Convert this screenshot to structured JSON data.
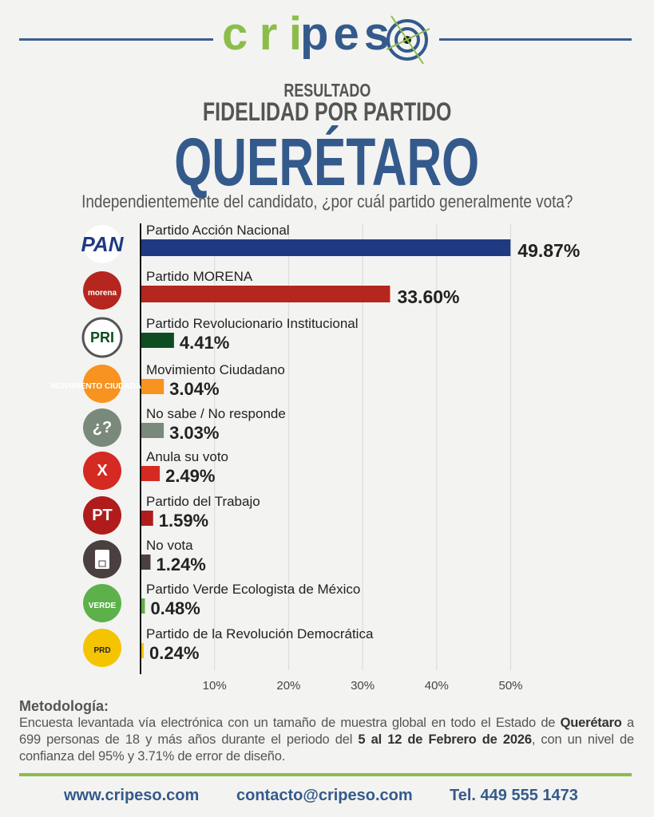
{
  "brand": {
    "name": "cripeso",
    "colors": {
      "green": "#8cbd4a",
      "blue": "#345a8c"
    }
  },
  "header": {
    "kicker": "RESULTADO",
    "title": "FIDELIDAD POR PARTIDO",
    "state": "QUERÉTARO",
    "question": "Independientemente del candidato, ¿por cuál partido generalmente vota?"
  },
  "chart_data": {
    "type": "bar",
    "orientation": "horizontal",
    "xlim": [
      0,
      50
    ],
    "grid": true,
    "xticks": [
      "10%",
      "20%",
      "30%",
      "40%",
      "50%"
    ],
    "categories": [
      "Partido Acción Nacional",
      "Partido MORENA",
      "Partido Revolucionario Institucional",
      "Movimiento Ciudadano",
      "No sabe / No responde",
      "Anula su voto",
      "Partido del Trabajo",
      "No vota",
      "Partido Verde Ecologista de México",
      "Partido de la Revolución Democrática"
    ],
    "values": [
      49.87,
      33.6,
      4.41,
      3.04,
      3.03,
      2.49,
      1.59,
      1.24,
      0.48,
      0.24
    ],
    "labels": [
      "49.87%",
      "33.60%",
      "4.41%",
      "3.04%",
      "3.03%",
      "2.49%",
      "1.59%",
      "1.24%",
      "0.48%",
      "0.24%"
    ],
    "colors": [
      "#1f3a80",
      "#b5261e",
      "#0d4d1f",
      "#f7931e",
      "#7a8a7a",
      "#d42a22",
      "#b01c1c",
      "#4a4040",
      "#5db14a",
      "#f5c400"
    ],
    "icons": [
      {
        "name": "pan-logo",
        "text": "PAN"
      },
      {
        "name": "morena-logo",
        "text": "morena"
      },
      {
        "name": "pri-logo",
        "text": "PRI"
      },
      {
        "name": "mc-logo",
        "text": "MOVIMIENTO CIUDADANO"
      },
      {
        "name": "question-icon",
        "text": "¿?"
      },
      {
        "name": "x-icon",
        "text": "X"
      },
      {
        "name": "pt-logo",
        "text": "PT"
      },
      {
        "name": "ballot-icon",
        "text": ""
      },
      {
        "name": "verde-logo",
        "text": "VERDE"
      },
      {
        "name": "prd-logo",
        "text": "PRD"
      }
    ]
  },
  "methodology": {
    "title": "Metodología:",
    "p1": "Encuesta levantada vía electrónica con un tamaño de muestra global en todo el Estado de ",
    "state": "Querétaro",
    "p2": " a 699 personas de 18 y más años durante el periodo del ",
    "dates": "5 al 12 de Febrero de 2026",
    "p3": ", con un nivel de confianza del 95% y 3.71% de error de diseño."
  },
  "footer": {
    "web": "www.cripeso.com",
    "email": "contacto@cripeso.com",
    "phone": "Tel. 449 555 1473"
  }
}
